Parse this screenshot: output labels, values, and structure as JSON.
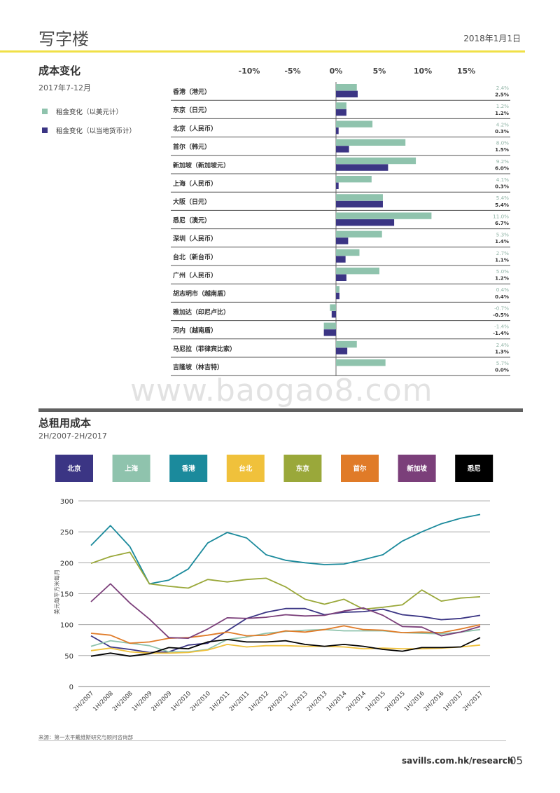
{
  "header": {
    "title": "写字楼",
    "date": "2018年1月1日"
  },
  "cost_section": {
    "title": "成本变化",
    "subtitle": "2017年7-12月",
    "legend": [
      {
        "label": "租金变化（以美元计）",
        "color": "#8fc3ad"
      },
      {
        "label": "租金变化（以当地货币计）",
        "color": "#3b3584"
      }
    ]
  },
  "total_section": {
    "title": "总租用成本",
    "subtitle": "2H/2007-2H/2017"
  },
  "watermark": "www.baogao8.com",
  "source": "来源：第一太平戴维斯研究与顾问咨询部",
  "footer": {
    "site": "savills.com.hk/research",
    "page": "05"
  },
  "chart_data": [
    {
      "type": "bar",
      "title": "成本变化",
      "xticks": [
        "-10%",
        "-5%",
        "0%",
        "5%",
        "10%",
        "15%"
      ],
      "xtick_values": [
        -10,
        -5,
        0,
        5,
        10,
        15
      ],
      "categories": [
        "香港（港元）",
        "东京（日元）",
        "北京（人民币）",
        "首尔（韩元）",
        "新加坡（新加坡元）",
        "上海（人民币）",
        "大阪（日元）",
        "悉尼（澳元）",
        "深圳（人民币）",
        "台北（新台币）",
        "广州（人民币）",
        "胡志明市（越南盾）",
        "雅加达（印尼卢比）",
        "河内（越南盾）",
        "马尼拉（菲律宾比索）",
        "吉隆坡（林吉特）"
      ],
      "series": [
        {
          "name": "租金变化（以美元计）",
          "color": "#8fc3ad",
          "values": [
            2.4,
            1.2,
            4.2,
            8.0,
            9.2,
            4.1,
            5.4,
            11.0,
            5.3,
            2.7,
            5.0,
            0.4,
            -0.7,
            -1.4,
            2.4,
            5.7
          ],
          "labels": [
            "2.4%",
            "1.2%",
            "4.2%",
            "8.0%",
            "9.2%",
            "4.1%",
            "5.4%",
            "11.0%",
            "5.3%",
            "2.7%",
            "5.0%",
            "0.4%",
            "-0.7%",
            "-1.4%",
            "2.4%",
            "5.7%"
          ]
        },
        {
          "name": "租金变化（以当地货币计）",
          "color": "#3b3584",
          "values": [
            2.5,
            1.2,
            0.3,
            1.5,
            6.0,
            0.3,
            5.4,
            6.7,
            1.4,
            1.1,
            1.2,
            0.4,
            -0.5,
            -1.4,
            1.3,
            0.0
          ],
          "labels": [
            "2.5%",
            "1.2%",
            "0.3%",
            "1.5%",
            "6.0%",
            "0.3%",
            "5.4%",
            "6.7%",
            "1.4%",
            "1.1%",
            "1.2%",
            "0.4%",
            "-0.5%",
            "-1.4%",
            "1.3%",
            "0.0%"
          ]
        }
      ]
    },
    {
      "type": "line",
      "title": "总租用成本",
      "ylabel": "美元每平方米每月",
      "ylim": [
        0,
        300
      ],
      "yticks": [
        0,
        50,
        100,
        150,
        200,
        250,
        300
      ],
      "grid": true,
      "legend_position": "top",
      "x": [
        "2H/2007",
        "1H/2008",
        "2H/2008",
        "1H/2009",
        "2H/2009",
        "1H/2010",
        "2H/2010",
        "1H/2011",
        "2H/2011",
        "1H/2012",
        "2H/2012",
        "1H/2013",
        "2H/2013",
        "1H/2014",
        "2H/2014",
        "1H/2015",
        "2H/2015",
        "1H/2016",
        "2H/2016",
        "1H/2017",
        "2H/2017"
      ],
      "series": [
        {
          "name": "北京",
          "color": "#3b3584",
          "values": [
            82,
            64,
            60,
            55,
            56,
            67,
            70,
            90,
            110,
            120,
            126,
            126,
            116,
            120,
            121,
            125,
            116,
            113,
            108,
            110,
            115
          ]
        },
        {
          "name": "上海",
          "color": "#8fc3ad",
          "values": [
            65,
            74,
            70,
            66,
            56,
            56,
            60,
            76,
            80,
            86,
            89,
            91,
            92,
            90,
            90,
            90,
            87,
            86,
            85,
            88,
            92
          ]
        },
        {
          "name": "香港",
          "color": "#1b8a9c",
          "values": [
            228,
            260,
            226,
            166,
            172,
            190,
            232,
            249,
            240,
            213,
            204,
            200,
            197,
            198,
            205,
            213,
            235,
            250,
            263,
            272,
            278
          ]
        },
        {
          "name": "台北",
          "color": "#f0c13b",
          "values": [
            58,
            62,
            56,
            54,
            54,
            55,
            59,
            68,
            64,
            66,
            66,
            65,
            65,
            64,
            61,
            62,
            61,
            61,
            62,
            64,
            67
          ]
        },
        {
          "name": "东京",
          "color": "#9aa83a",
          "values": [
            199,
            210,
            217,
            166,
            162,
            159,
            173,
            169,
            173,
            175,
            161,
            141,
            133,
            141,
            125,
            128,
            132,
            156,
            138,
            143,
            145
          ]
        },
        {
          "name": "首尔",
          "color": "#e07b28",
          "values": [
            86,
            83,
            70,
            72,
            78,
            79,
            83,
            88,
            82,
            83,
            90,
            88,
            92,
            98,
            92,
            91,
            87,
            88,
            87,
            93,
            100
          ]
        },
        {
          "name": "新加坡",
          "color": "#7b3f7a",
          "values": [
            137,
            166,
            135,
            109,
            79,
            78,
            93,
            111,
            110,
            112,
            116,
            114,
            115,
            122,
            127,
            115,
            97,
            96,
            82,
            88,
            97
          ]
        },
        {
          "name": "悉尼",
          "color": "#000000",
          "values": [
            49,
            54,
            49,
            53,
            63,
            61,
            72,
            76,
            72,
            72,
            74,
            68,
            65,
            68,
            65,
            60,
            57,
            63,
            63,
            64,
            79
          ]
        }
      ]
    }
  ]
}
